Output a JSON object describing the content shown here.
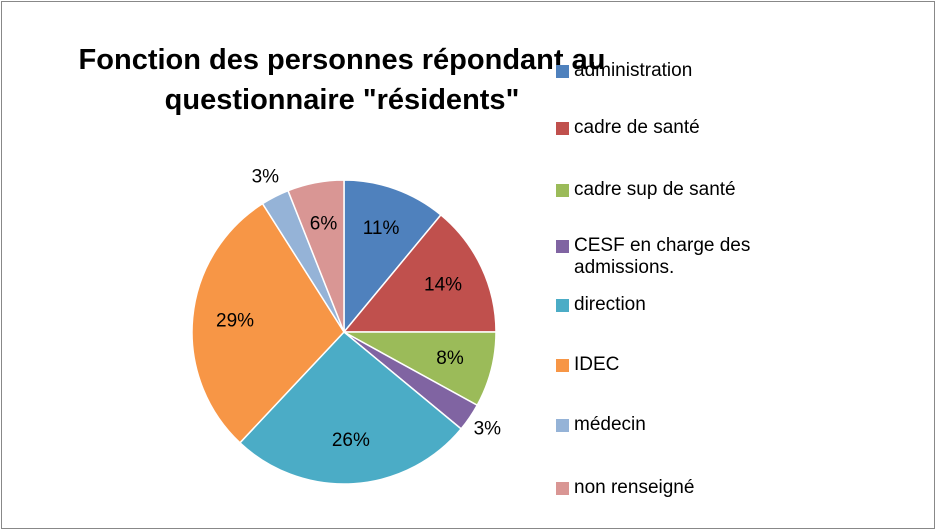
{
  "chart_data": {
    "type": "pie",
    "title": "Fonction des personnes répondant au questionnaire \"résidents\"",
    "categories": [
      "administration",
      "cadre de santé",
      "cadre sup de santé",
      "CESF en charge des admissions.",
      "direction",
      "IDEC",
      "médecin",
      "non renseigné"
    ],
    "values": [
      11,
      14,
      8,
      3,
      26,
      29,
      3,
      6
    ],
    "value_labels": [
      "11%",
      "14%",
      "8%",
      "3%",
      "26%",
      "29%",
      "3%",
      "6%"
    ],
    "colors": [
      "#4f81bd",
      "#c0504d",
      "#9bbb59",
      "#8064a2",
      "#4bacc6",
      "#f79646",
      "#95b3d7",
      "#d99694"
    ],
    "legend": "right"
  }
}
